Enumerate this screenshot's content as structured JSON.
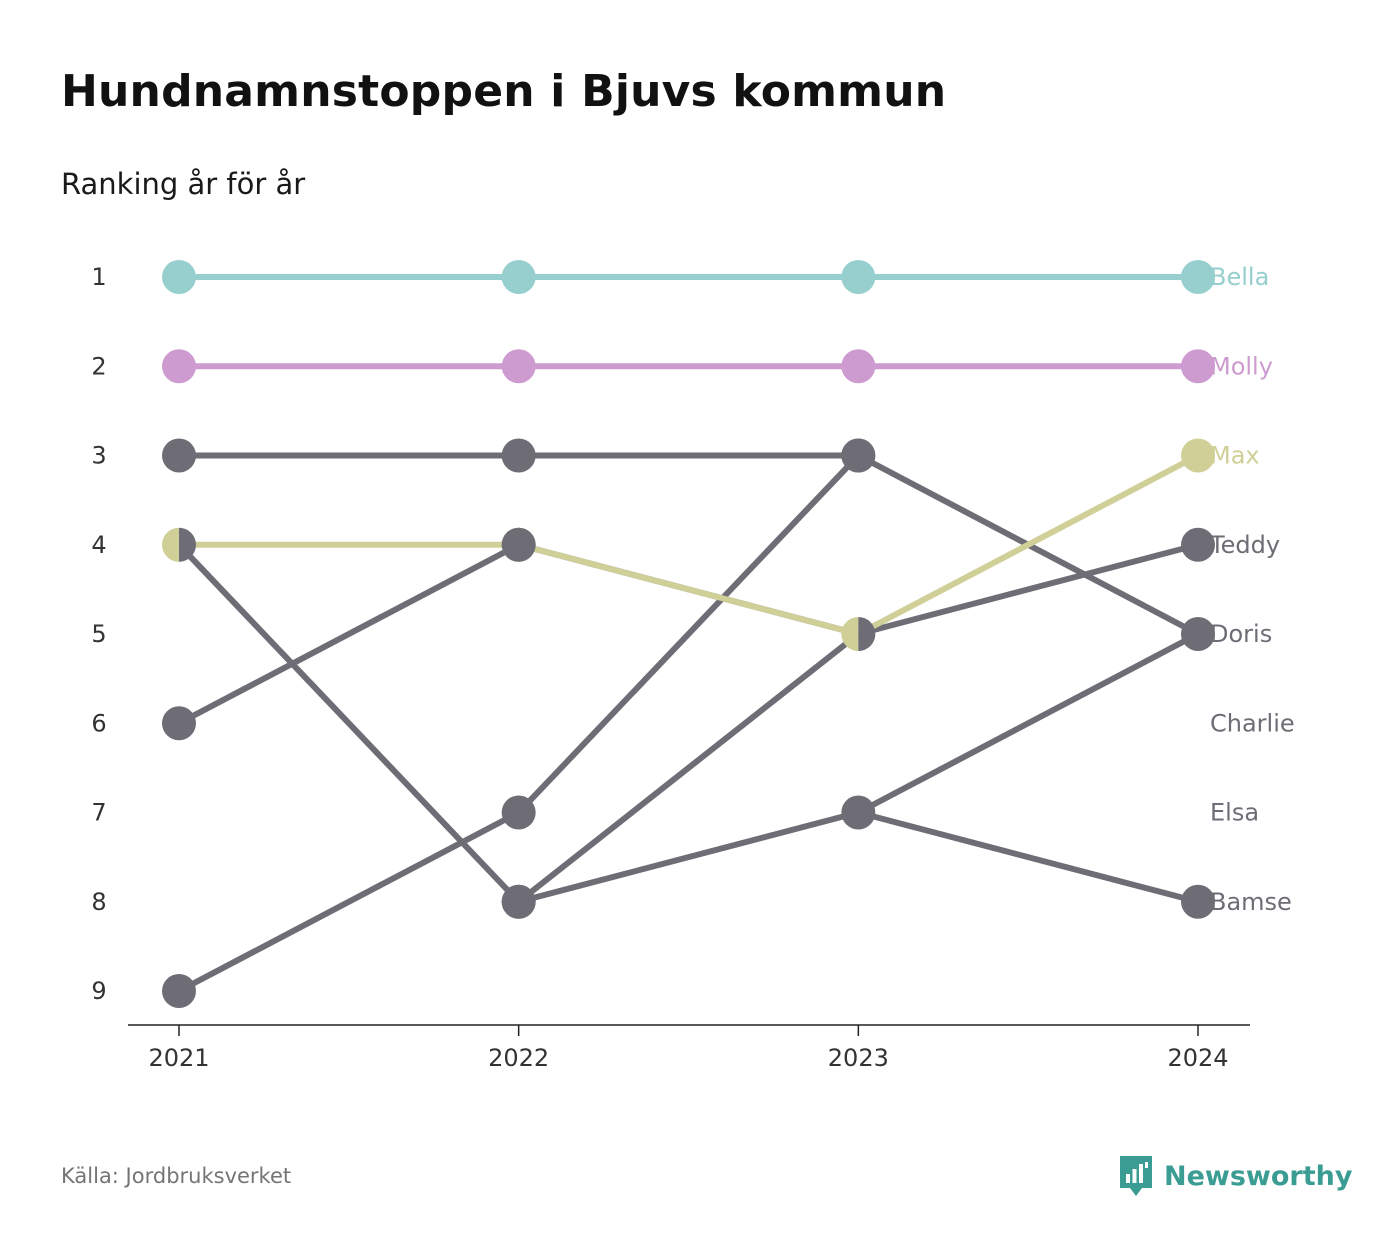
{
  "title": "Hundnamnstoppen i Bjuvs kommun",
  "subtitle": "Ranking år för år",
  "source": "Källa: Jordbruksverket",
  "brand": {
    "name": "Newsworthy",
    "icon": "newsworthy-logo-icon",
    "color": "#3a9c92"
  },
  "chart_data": {
    "type": "line",
    "x": [
      "2021",
      "2022",
      "2023",
      "2024"
    ],
    "y_ticks": [
      "1",
      "2",
      "3",
      "4",
      "5",
      "6",
      "7",
      "8",
      "9"
    ],
    "ylim": [
      1,
      9
    ],
    "y_reversed": true,
    "grid": false,
    "series": [
      {
        "name": "Bella",
        "values": [
          1,
          1,
          1,
          1
        ],
        "color": "#96cfcd"
      },
      {
        "name": "Molly",
        "values": [
          2,
          2,
          2,
          2
        ],
        "color": "#cd9bd0"
      },
      {
        "name": "Max",
        "values": [
          4,
          4,
          5,
          3
        ],
        "color": "#cfcf97"
      },
      {
        "name": "Teddy",
        "values": [
          6,
          4,
          5,
          4
        ],
        "color": "#6e6d75"
      },
      {
        "name": "Doris",
        "values": [
          3,
          3,
          3,
          5
        ],
        "color": "#6e6d75"
      },
      {
        "name": "Charlie",
        "values": [
          9,
          7,
          3,
          null
        ],
        "color": "#6e6d75"
      },
      {
        "name": "Elsa",
        "values": [
          null,
          8,
          5,
          null
        ],
        "color": "#6e6d75"
      },
      {
        "name": "Bamse",
        "values": [
          4,
          8,
          7,
          8
        ],
        "color": "#6e6d75"
      }
    ],
    "extra_segments": [
      {
        "from": [
          "2023",
          7
        ],
        "to": [
          "2024",
          5
        ],
        "color": "#6e6d75"
      }
    ],
    "extra_points": [
      {
        "x": "2022",
        "y": 4,
        "color": "#6e6d75"
      }
    ],
    "split_points": [
      {
        "x": "2021",
        "y": 4,
        "left": "#cfcf97",
        "right": "#6e6d75"
      },
      {
        "x": "2023",
        "y": 5,
        "left": "#cfcf97",
        "right": "#6e6d75"
      }
    ]
  }
}
